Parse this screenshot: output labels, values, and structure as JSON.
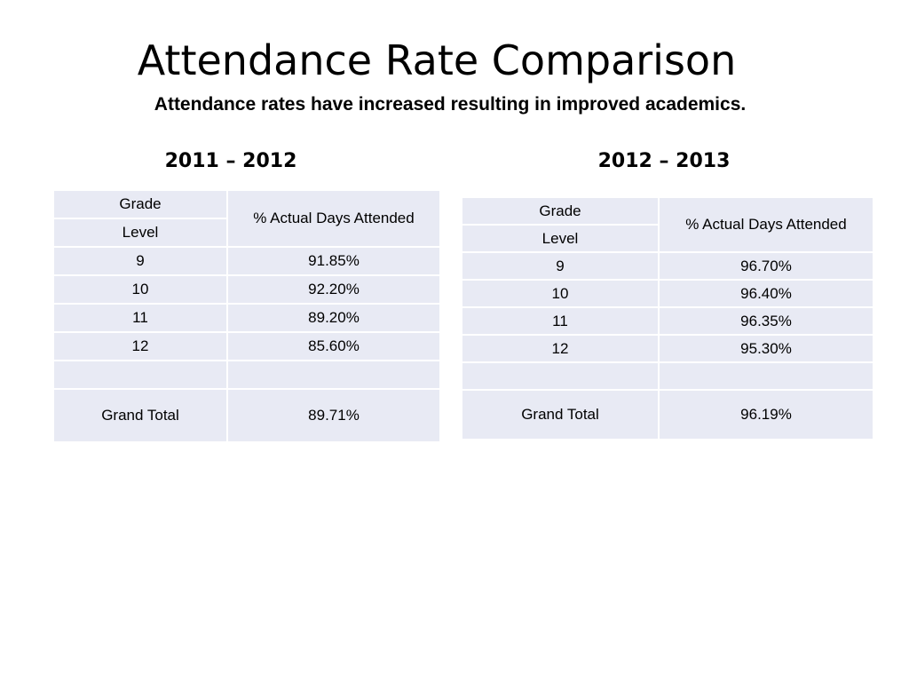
{
  "slide": {
    "title": "Attendance Rate Comparison",
    "subtitle": "Attendance rates have increased resulting in improved academics."
  },
  "tables": [
    {
      "year": "2011 – 2012",
      "header": {
        "grade_line1": "Grade",
        "grade_line2": "Level",
        "metric": "% Actual Days  Attended"
      },
      "rows": [
        {
          "grade": "9",
          "value": "91.85%"
        },
        {
          "grade": "10",
          "value": "92.20%"
        },
        {
          "grade": "11",
          "value": "89.20%"
        },
        {
          "grade": "12",
          "value": "85.60%"
        },
        {
          "grade": "",
          "value": ""
        }
      ],
      "total": {
        "label": "Grand Total",
        "value": "89.71%"
      }
    },
    {
      "year": "2012 – 2013",
      "header": {
        "grade_line1": "Grade",
        "grade_line2": "Level",
        "metric": "% Actual Days  Attended"
      },
      "rows": [
        {
          "grade": "9",
          "value": "96.70%"
        },
        {
          "grade": "10",
          "value": "96.40%"
        },
        {
          "grade": "11",
          "value": "96.35%"
        },
        {
          "grade": "12",
          "value": "95.30%"
        },
        {
          "grade": "",
          "value": ""
        }
      ],
      "total": {
        "label": "Grand Total",
        "value": "96.19%"
      }
    }
  ],
  "colors": {
    "table_fill": "#e8eaf4",
    "cell_border": "#ffffff",
    "text": "#000000"
  }
}
